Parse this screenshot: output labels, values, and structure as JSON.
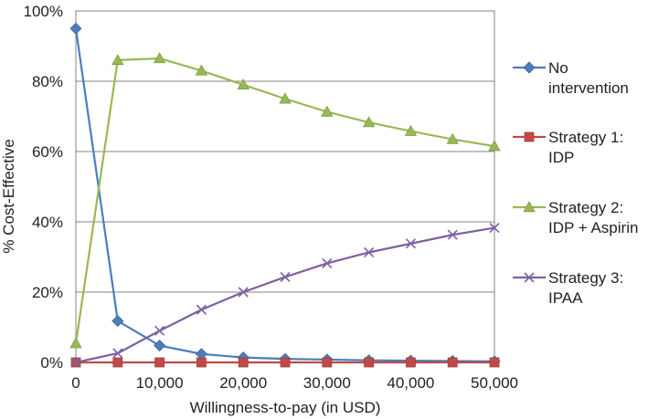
{
  "chart_data": {
    "type": "line",
    "title": "",
    "xlabel": "Willingness-to-pay (in USD)",
    "ylabel": "% Cost-Effective",
    "xlim": [
      0,
      50000
    ],
    "ylim": [
      0,
      100
    ],
    "grid": true,
    "legend_position": "right",
    "x": [
      0,
      5000,
      10000,
      15000,
      20000,
      25000,
      30000,
      35000,
      40000,
      45000,
      50000
    ],
    "x_ticks": [
      0,
      10000,
      20000,
      30000,
      40000,
      50000
    ],
    "x_tick_labels": [
      "0",
      "10,000",
      "20,000",
      "30,000",
      "40,000",
      "50,000"
    ],
    "y_ticks": [
      0,
      20,
      40,
      60,
      80,
      100
    ],
    "y_tick_labels": [
      "0%",
      "20%",
      "40%",
      "60%",
      "80%",
      "100%"
    ],
    "series": [
      {
        "name": "No intervention",
        "legend_lines": [
          "No",
          "intervention"
        ],
        "color": "#4a7ebb",
        "marker": "diamond",
        "values": [
          95,
          11.8,
          4.8,
          2.4,
          1.4,
          1.0,
          0.8,
          0.6,
          0.5,
          0.4,
          0.3
        ]
      },
      {
        "name": "Strategy 1: IDP",
        "legend_lines": [
          "Strategy 1:",
          "IDP"
        ],
        "color": "#be4b48",
        "marker": "square",
        "values": [
          0,
          0,
          0,
          0,
          0,
          0,
          0,
          0,
          0,
          0,
          0
        ]
      },
      {
        "name": "Strategy 2: IDP + Aspirin",
        "legend_lines": [
          "Strategy 2:",
          "IDP + Aspirin"
        ],
        "color": "#98b954",
        "marker": "triangle",
        "values": [
          5.4,
          86,
          86.5,
          83,
          79,
          75,
          71.3,
          68.3,
          65.8,
          63.5,
          61.5
        ]
      },
      {
        "name": "Strategy 3: IPAA",
        "legend_lines": [
          "Strategy 3:",
          "IPAA"
        ],
        "color": "#7d60a0",
        "marker": "x",
        "values": [
          0,
          2.6,
          9,
          15,
          20,
          24.3,
          28.2,
          31.3,
          33.8,
          36.3,
          38.3
        ]
      }
    ]
  }
}
